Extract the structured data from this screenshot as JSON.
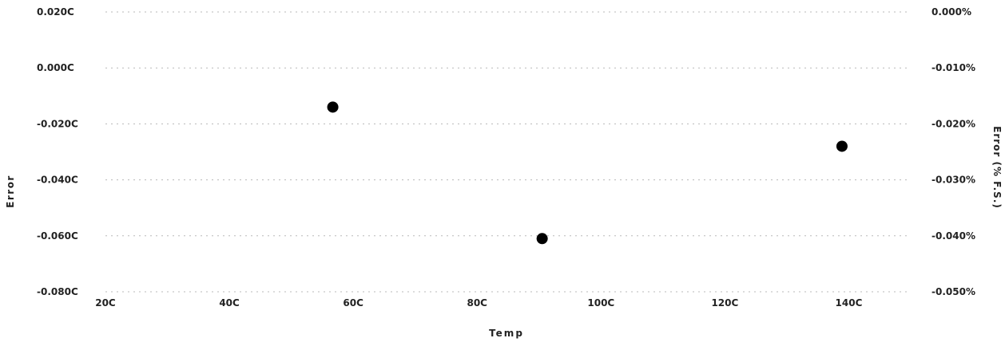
{
  "chart_data": {
    "type": "scatter",
    "xlabel": "Temp",
    "ylabel": "Error",
    "y2label": "Error (% F.S.)",
    "xlim": [
      20,
      150
    ],
    "ylim": [
      -0.08,
      0.02
    ],
    "y2lim": [
      -0.05,
      0.0
    ],
    "x_ticks": [
      20,
      40,
      60,
      80,
      100,
      120,
      140
    ],
    "x_tick_labels": [
      "20C",
      "40C",
      "60C",
      "80C",
      "100C",
      "120C",
      "140C"
    ],
    "y_ticks": [
      0.02,
      0.0,
      -0.02,
      -0.04,
      -0.06,
      -0.08
    ],
    "y_tick_labels": [
      "0.020C",
      "0.000C",
      "-0.020C",
      "-0.040C",
      "-0.060C",
      "-0.080C"
    ],
    "y2_ticks": [
      0.0,
      -0.01,
      -0.02,
      -0.03,
      -0.04,
      -0.05
    ],
    "y2_tick_labels": [
      "0.000%",
      "-0.010%",
      "-0.020%",
      "-0.030%",
      "-0.040%",
      "-0.050%"
    ],
    "grid": true,
    "series": [
      {
        "points": [
          {
            "x": 56.7,
            "y": -0.014
          },
          {
            "x": 90.5,
            "y": -0.061
          },
          {
            "x": 138.9,
            "y": -0.028
          }
        ]
      }
    ],
    "colors": {
      "marker": "#000000",
      "grid": "#b8b8b8",
      "text": "#222222"
    }
  }
}
